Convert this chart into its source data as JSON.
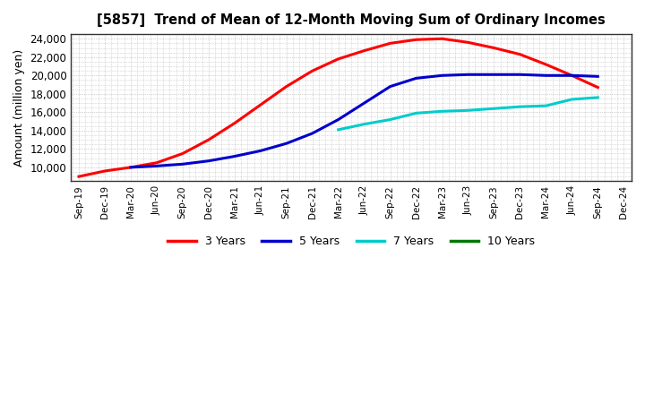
{
  "title": "[5857]  Trend of Mean of 12-Month Moving Sum of Ordinary Incomes",
  "ylabel": "Amount (million yen)",
  "ylim": [
    8500,
    24500
  ],
  "yticks": [
    10000,
    12000,
    14000,
    16000,
    18000,
    20000,
    22000,
    24000
  ],
  "background_color": "#ffffff",
  "plot_bg_color": "#ffffff",
  "series": {
    "3 Years": {
      "color": "#ff0000",
      "data": {
        "Sep-19": 9000,
        "Dec-19": 9600,
        "Mar-20": 10000,
        "Jun-20": 10500,
        "Sep-20": 11500,
        "Dec-20": 13000,
        "Mar-21": 14800,
        "Jun-21": 16800,
        "Sep-21": 18800,
        "Dec-21": 20500,
        "Mar-22": 21800,
        "Jun-22": 22700,
        "Sep-22": 23500,
        "Dec-22": 23900,
        "Mar-23": 24000,
        "Jun-23": 23600,
        "Sep-23": 23000,
        "Dec-23": 22300,
        "Mar-24": 21200,
        "Jun-24": 20000,
        "Sep-24": 18700
      }
    },
    "5 Years": {
      "color": "#0000cc",
      "data": {
        "Mar-20": 10000,
        "Jun-20": 10150,
        "Sep-20": 10350,
        "Dec-20": 10700,
        "Mar-21": 11200,
        "Jun-21": 11800,
        "Sep-21": 12600,
        "Dec-21": 13700,
        "Mar-22": 15200,
        "Jun-22": 17000,
        "Sep-22": 18800,
        "Dec-22": 19700,
        "Mar-23": 20000,
        "Jun-23": 20100,
        "Sep-23": 20100,
        "Dec-23": 20100,
        "Mar-24": 20000,
        "Jun-24": 20000,
        "Sep-24": 19900
      }
    },
    "7 Years": {
      "color": "#00cccc",
      "data": {
        "Mar-22": 14100,
        "Jun-22": 14700,
        "Sep-22": 15200,
        "Dec-22": 15900,
        "Mar-23": 16100,
        "Jun-23": 16200,
        "Sep-23": 16400,
        "Dec-23": 16600,
        "Mar-24": 16700,
        "Jun-24": 17400,
        "Sep-24": 17600
      }
    },
    "10 Years": {
      "color": "#007700",
      "data": {}
    }
  },
  "xtick_labels": [
    "Sep-19",
    "Dec-19",
    "Mar-20",
    "Jun-20",
    "Sep-20",
    "Dec-20",
    "Mar-21",
    "Jun-21",
    "Sep-21",
    "Dec-21",
    "Mar-22",
    "Jun-22",
    "Sep-22",
    "Dec-22",
    "Mar-23",
    "Jun-23",
    "Sep-23",
    "Dec-23",
    "Mar-24",
    "Jun-24",
    "Sep-24",
    "Dec-24"
  ],
  "legend_entries": [
    "3 Years",
    "5 Years",
    "7 Years",
    "10 Years"
  ],
  "legend_colors": [
    "#ff0000",
    "#0000cc",
    "#00cccc",
    "#007700"
  ]
}
